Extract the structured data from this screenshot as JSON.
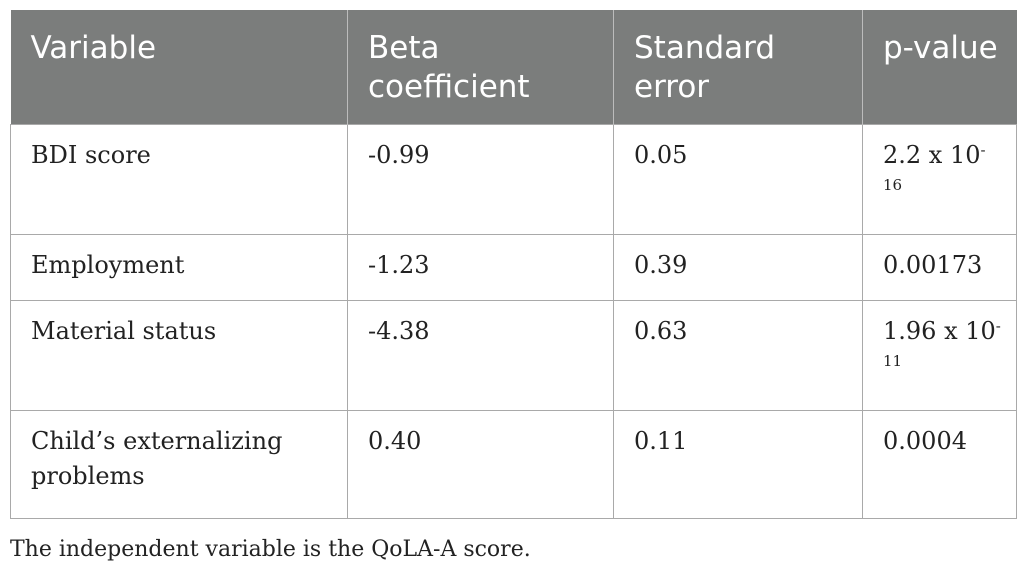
{
  "table": {
    "headers": [
      "Variable",
      "Beta coefficient",
      "Standard error",
      "p-value"
    ],
    "rows": [
      {
        "variable": "BDI score",
        "beta": "-0.99",
        "se": "0.05",
        "p_base": "2.2 x 10",
        "p_exp": "-16"
      },
      {
        "variable": "Employment",
        "beta": "-1.23",
        "se": "0.39",
        "p_base": "0.00173",
        "p_exp": ""
      },
      {
        "variable": "Material status",
        "beta": "-4.38",
        "se": "0.63",
        "p_base": "1.96 x 10",
        "p_exp": "-11"
      },
      {
        "variable": "Child’s externalizing problems",
        "beta": "0.40",
        "se": "0.11",
        "p_base": "0.0004",
        "p_exp": ""
      }
    ]
  },
  "footnote": "The independent variable is the QoLA-A score."
}
